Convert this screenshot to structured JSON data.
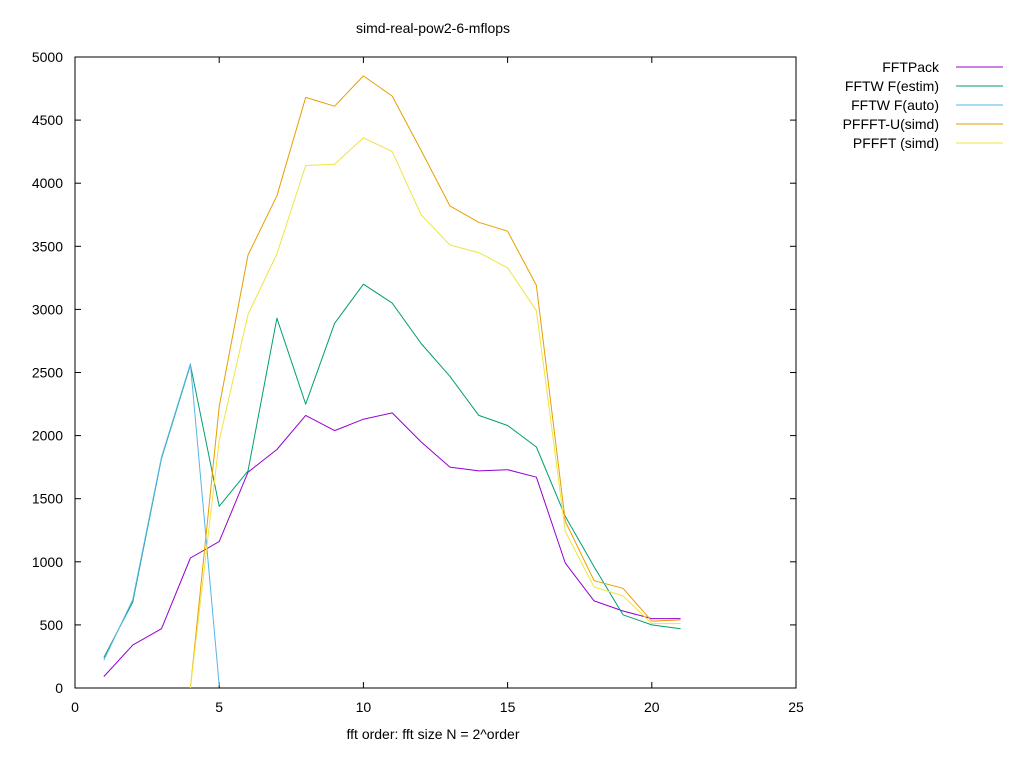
{
  "chart_data": {
    "type": "line",
    "title": "simd-real-pow2-6-mflops",
    "xlabel": "fft order: fft size N = 2^order",
    "ylabel": "",
    "xlim": [
      0,
      25
    ],
    "ylim": [
      0,
      5000
    ],
    "xticks": [
      0,
      5,
      10,
      15,
      20,
      25
    ],
    "yticks": [
      0,
      500,
      1000,
      1500,
      2000,
      2500,
      3000,
      3500,
      4000,
      4500,
      5000
    ],
    "grid": false,
    "legend_position": "outside-top-right",
    "series": [
      {
        "name": "FFTPack",
        "color": "#9400d3",
        "x": [
          1,
          2,
          3,
          4,
          5,
          6,
          7,
          8,
          9,
          10,
          11,
          12,
          13,
          14,
          15,
          16,
          17,
          18,
          19,
          20,
          21
        ],
        "y": [
          90,
          340,
          470,
          1030,
          1160,
          1710,
          1890,
          2160,
          2040,
          2130,
          2180,
          1950,
          1750,
          1720,
          1730,
          1670,
          990,
          690,
          610,
          550,
          550
        ]
      },
      {
        "name": "FFTW F(estim)",
        "color": "#009e73",
        "x": [
          1,
          2,
          3,
          4,
          5,
          6,
          7,
          8,
          9,
          10,
          11,
          12,
          13,
          14,
          15,
          16,
          17,
          18,
          19,
          20,
          21
        ],
        "y": [
          240,
          680,
          1820,
          2560,
          1440,
          1720,
          2930,
          2250,
          2890,
          3200,
          3050,
          2730,
          2470,
          2160,
          2080,
          1910,
          1360,
          960,
          580,
          500,
          470
        ]
      },
      {
        "name": "FFTW F(auto)",
        "color": "#56b4e9",
        "x": [
          1,
          2,
          3,
          4,
          5
        ],
        "y": [
          220,
          700,
          1830,
          2570,
          20
        ]
      },
      {
        "name": "PFFFT-U(simd)",
        "color": "#e69f00",
        "x": [
          4,
          5,
          6,
          7,
          8,
          9,
          10,
          11,
          12,
          13,
          14,
          15,
          16,
          17,
          18,
          19,
          20,
          21
        ],
        "y": [
          0,
          2230,
          3430,
          3900,
          4680,
          4610,
          4850,
          4690,
          4260,
          3820,
          3690,
          3620,
          3190,
          1320,
          850,
          790,
          530,
          540
        ]
      },
      {
        "name": "PFFFT (simd)",
        "color": "#f0e442",
        "x": [
          4,
          5,
          6,
          7,
          8,
          9,
          10,
          11,
          12,
          13,
          14,
          15,
          16,
          17,
          18,
          19,
          20,
          21
        ],
        "y": [
          0,
          1960,
          2960,
          3440,
          4140,
          4150,
          4360,
          4250,
          3750,
          3510,
          3450,
          3330,
          2990,
          1240,
          800,
          730,
          510,
          510
        ]
      }
    ]
  }
}
